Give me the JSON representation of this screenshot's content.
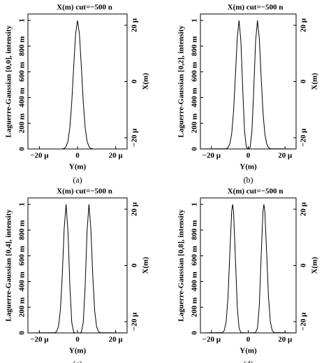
{
  "chart_data": [
    {
      "type": "line",
      "title": "X(m) cut=−500 n",
      "ylabel": "Laguerre-Gaussian [0,0], intensity",
      "xlabel": "Y(m)",
      "y2label": "X(m)",
      "caption": "(a)",
      "color": "#000000",
      "xlim": [
        -2.6e-05,
        2.6e-05
      ],
      "xticks": [
        {
          "value": -2e-05,
          "label": "−20 μ"
        },
        0,
        {
          "value": 2e-05,
          "label": "20 μ"
        }
      ],
      "ylim": [
        0,
        1.05
      ],
      "yticks": [
        0,
        {
          "value": 0.2,
          "label": "200 m"
        },
        {
          "value": 0.4,
          "label": "400 m"
        },
        {
          "value": 0.6,
          "label": "600 m"
        },
        {
          "value": 0.8,
          "label": "800 m"
        },
        1
      ],
      "y2lim": [
        -2.4e-05,
        2.4e-05
      ],
      "y2ticks": [
        {
          "value": 2e-05,
          "label": "20 μ"
        },
        0,
        {
          "value": -2e-05,
          "label": "−20 μ"
        }
      ],
      "x": [
        -2.6e-05,
        -8e-06,
        -7e-06,
        -6e-06,
        -5e-06,
        -4e-06,
        -3e-06,
        -2e-06,
        -1e-06,
        0,
        1e-06,
        2e-06,
        3e-06,
        4e-06,
        5e-06,
        6e-06,
        7e-06,
        8e-06,
        2.6e-05
      ],
      "values": [
        0,
        0.001,
        0.004,
        0.018,
        0.062,
        0.169,
        0.368,
        0.642,
        0.895,
        1,
        0.895,
        0.642,
        0.368,
        0.169,
        0.062,
        0.018,
        0.004,
        0.001,
        0
      ]
    },
    {
      "type": "line",
      "title": "X(m) cut=−500 n",
      "ylabel": "Laguerre-Gaussian [0,2], intensity",
      "xlabel": "Y(m)",
      "y2label": "X(m)",
      "caption": "(b)",
      "color": "#000000",
      "xlim": [
        -2.6e-05,
        2.6e-05
      ],
      "xticks": [
        {
          "value": -2e-05,
          "label": "−20 μ"
        },
        0,
        {
          "value": 2e-05,
          "label": "20 μ"
        }
      ],
      "ylim": [
        0,
        1.05
      ],
      "yticks": [
        0,
        {
          "value": 0.2,
          "label": "200 m"
        },
        {
          "value": 0.4,
          "label": "400 m"
        },
        {
          "value": 0.6,
          "label": "600 m"
        },
        {
          "value": 0.8,
          "label": "800 m"
        },
        1
      ],
      "y2lim": [
        -2.4e-05,
        2.4e-05
      ],
      "y2ticks": [
        {
          "value": 2e-05,
          "label": "20 μ"
        },
        0,
        {
          "value": -2e-05,
          "label": "−20 μ"
        }
      ],
      "x": [
        -2.6e-05,
        -1.2e-05,
        -1.1e-05,
        -1e-05,
        -9e-06,
        -8e-06,
        -7e-06,
        -6e-06,
        -5e-06,
        -4e-06,
        -3e-06,
        -2e-06,
        -1e-06,
        0,
        1e-06,
        2e-06,
        3e-06,
        4e-06,
        5e-06,
        6e-06,
        7e-06,
        8e-06,
        9e-06,
        1e-05,
        1.1e-05,
        1.2e-05,
        2.6e-05
      ],
      "values": [
        0,
        0.002,
        0.011,
        0.04,
        0.119,
        0.29,
        0.564,
        0.86,
        1,
        0.84,
        0.466,
        0.137,
        0.011,
        0,
        0.011,
        0.137,
        0.466,
        0.84,
        1,
        0.86,
        0.564,
        0.29,
        0.119,
        0.04,
        0.011,
        0.002,
        0
      ]
    },
    {
      "type": "line",
      "title": "X(m) cut=−500 n",
      "ylabel": "Laguerre-Gaussian [0,4], intensity",
      "xlabel": "Y(m)",
      "y2label": "X(m)",
      "caption": "(c)",
      "color": "#000000",
      "xlim": [
        -2.6e-05,
        2.6e-05
      ],
      "xticks": [
        {
          "value": -2e-05,
          "label": "−20 μ"
        },
        0,
        {
          "value": 2e-05,
          "label": "20 μ"
        }
      ],
      "ylim": [
        0,
        1.05
      ],
      "yticks": [
        0,
        {
          "value": 0.2,
          "label": "200 m"
        },
        {
          "value": 0.4,
          "label": "400 m"
        },
        {
          "value": 0.6,
          "label": "600 m"
        },
        {
          "value": 0.8,
          "label": "800 m"
        },
        1
      ],
      "y2lim": [
        -2.4e-05,
        2.4e-05
      ],
      "y2ticks": [
        {
          "value": 2e-05,
          "label": "20 μ"
        },
        0,
        {
          "value": -2e-05,
          "label": "−20 μ"
        }
      ],
      "x": [
        -2.6e-05,
        -1.2e-05,
        -1.1e-05,
        -1e-05,
        -9e-06,
        -8e-06,
        -7e-06,
        -6e-06,
        -5e-06,
        -4e-06,
        -3e-06,
        -2e-06,
        -1e-06,
        0,
        1e-06,
        2e-06,
        3e-06,
        4e-06,
        5e-06,
        6e-06,
        7e-06,
        8e-06,
        9e-06,
        1e-05,
        1.1e-05,
        1.2e-05,
        2.6e-05
      ],
      "values": [
        0,
        0.002,
        0.01,
        0.049,
        0.173,
        0.445,
        0.81,
        1,
        0.788,
        0.36,
        0.079,
        0.005,
        0,
        0,
        0,
        0.005,
        0.079,
        0.36,
        0.788,
        1,
        0.81,
        0.445,
        0.173,
        0.049,
        0.01,
        0.002,
        0
      ]
    },
    {
      "type": "line",
      "title": "X(m) cut=−500 n",
      "ylabel": "Laguerre-Gaussian [0,8], intensity",
      "xlabel": "Y(m)",
      "y2label": "X(m)",
      "caption": "(d)",
      "color": "#000000",
      "xlim": [
        -2.6e-05,
        2.6e-05
      ],
      "xticks": [
        {
          "value": -2e-05,
          "label": "−20 μ"
        },
        0,
        {
          "value": 2e-05,
          "label": "20 μ"
        }
      ],
      "ylim": [
        0,
        1.05
      ],
      "yticks": [
        0,
        {
          "value": 0.2,
          "label": "200 m"
        },
        {
          "value": 0.4,
          "label": "400 m"
        },
        {
          "value": 0.6,
          "label": "600 m"
        },
        {
          "value": 0.8,
          "label": "800 m"
        },
        1
      ],
      "y2lim": [
        -2.4e-05,
        2.4e-05
      ],
      "y2ticks": [
        {
          "value": 2e-05,
          "label": "20 μ"
        },
        0,
        {
          "value": -2e-05,
          "label": "−20 μ"
        }
      ],
      "x": [
        -2.6e-05,
        -1.4e-05,
        -1.3e-05,
        -1.2e-05,
        -1.1e-05,
        -1e-05,
        -9e-06,
        -8.5e-06,
        -8e-06,
        -7e-06,
        -6e-06,
        -5e-06,
        -4e-06,
        0,
        4e-06,
        5e-06,
        6e-06,
        7e-06,
        8e-06,
        8.5e-06,
        9e-06,
        1e-05,
        1.1e-05,
        1.2e-05,
        1.3e-05,
        1.4e-05,
        2.6e-05
      ],
      "values": [
        0,
        0.003,
        0.02,
        0.088,
        0.28,
        0.624,
        0.946,
        1,
        0.945,
        0.588,
        0.21,
        0.038,
        0.003,
        0,
        0.003,
        0.038,
        0.21,
        0.588,
        0.945,
        1,
        0.946,
        0.624,
        0.28,
        0.088,
        0.02,
        0.003,
        0
      ]
    }
  ]
}
